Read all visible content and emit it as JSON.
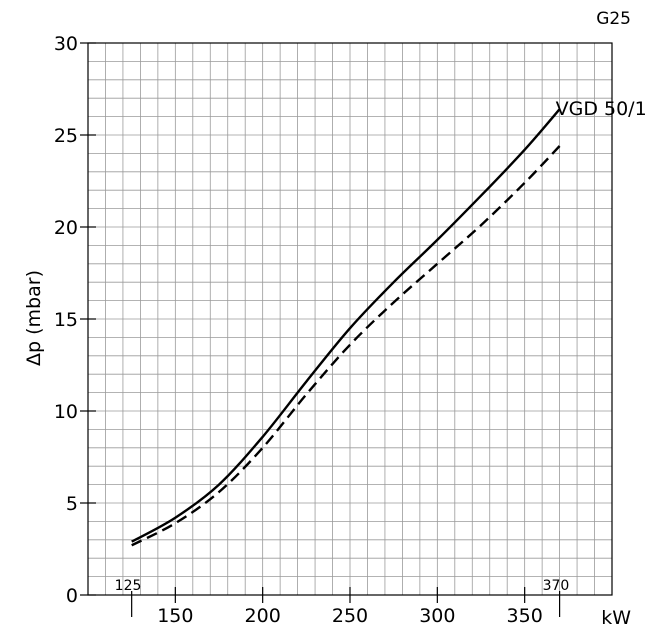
{
  "chart_data": {
    "type": "line",
    "title": "G25",
    "xlabel": "kW",
    "ylabel": "Δp (mbar)",
    "xlim": [
      100,
      400
    ],
    "ylim": [
      0,
      30
    ],
    "x_ticks": [
      150,
      200,
      250,
      300,
      350
    ],
    "y_ticks": [
      0,
      5,
      10,
      15,
      20,
      25,
      30
    ],
    "grid": true,
    "range_markers": [
      125,
      370
    ],
    "series": [
      {
        "name": "VGD 50/1",
        "style": "solid",
        "x": [
          125,
          150,
          175,
          200,
          225,
          250,
          275,
          300,
          325,
          350,
          370
        ],
        "y": [
          2.9,
          4.2,
          6.0,
          8.6,
          11.6,
          14.5,
          17.0,
          19.3,
          21.7,
          24.2,
          26.4
        ]
      },
      {
        "name": "",
        "style": "dashed",
        "x": [
          125,
          150,
          175,
          200,
          225,
          250,
          275,
          300,
          325,
          350,
          370
        ],
        "y": [
          2.7,
          3.9,
          5.6,
          8.0,
          10.9,
          13.6,
          15.9,
          18.0,
          20.1,
          22.4,
          24.4
        ]
      }
    ]
  }
}
